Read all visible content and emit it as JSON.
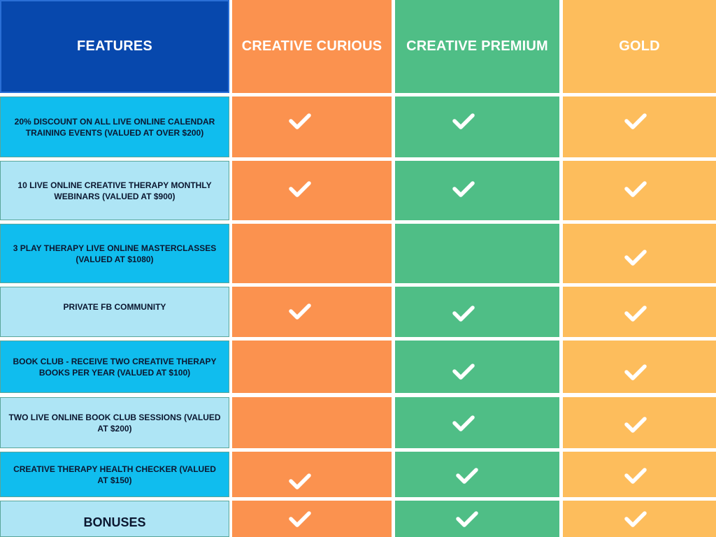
{
  "headers": {
    "features": "FEATURES",
    "curious": "CREATIVE CURIOUS",
    "premium": "CREATIVE PREMIUM",
    "gold": "GOLD"
  },
  "icons": {
    "check": "checkmark-icon"
  },
  "colors": {
    "features_header": "#0748ad",
    "feature_dark": "#10bdee",
    "feature_light": "#aee5f5",
    "curious": "#fb924f",
    "premium": "#4fbe86",
    "gold": "#fdbd5c",
    "check": "#ffffff"
  },
  "rows": [
    {
      "feature": "20% DISCOUNT ON ALL LIVE ONLINE CALENDAR TRAINING EVENTS   (VALUED AT OVER $200)",
      "curious": true,
      "premium": true,
      "gold": true
    },
    {
      "feature": "10 LIVE ONLINE CREATIVE THERAPY MONTHLY WEBINARS  (VALUED AT $900)",
      "curious": true,
      "premium": true,
      "gold": true
    },
    {
      "feature": "3 PLAY THERAPY LIVE ONLINE MASTERCLASSES (VALUED AT $1080)",
      "curious": false,
      "premium": false,
      "gold": true
    },
    {
      "feature": "PRIVATE FB COMMUNITY",
      "curious": true,
      "premium": true,
      "gold": true
    },
    {
      "feature": "BOOK CLUB - RECEIVE TWO CREATIVE THERAPY BOOKS PER YEAR  (VALUED AT $100)",
      "curious": false,
      "premium": true,
      "gold": true
    },
    {
      "feature": "TWO LIVE ONLINE BOOK CLUB SESSIONS (VALUED AT $200)",
      "curious": false,
      "premium": true,
      "gold": true
    },
    {
      "feature": "CREATIVE THERAPY HEALTH CHECKER (VALUED AT $150)",
      "curious": true,
      "premium": true,
      "gold": true
    },
    {
      "feature": "BONUSES",
      "curious": true,
      "premium": true,
      "gold": true
    }
  ]
}
